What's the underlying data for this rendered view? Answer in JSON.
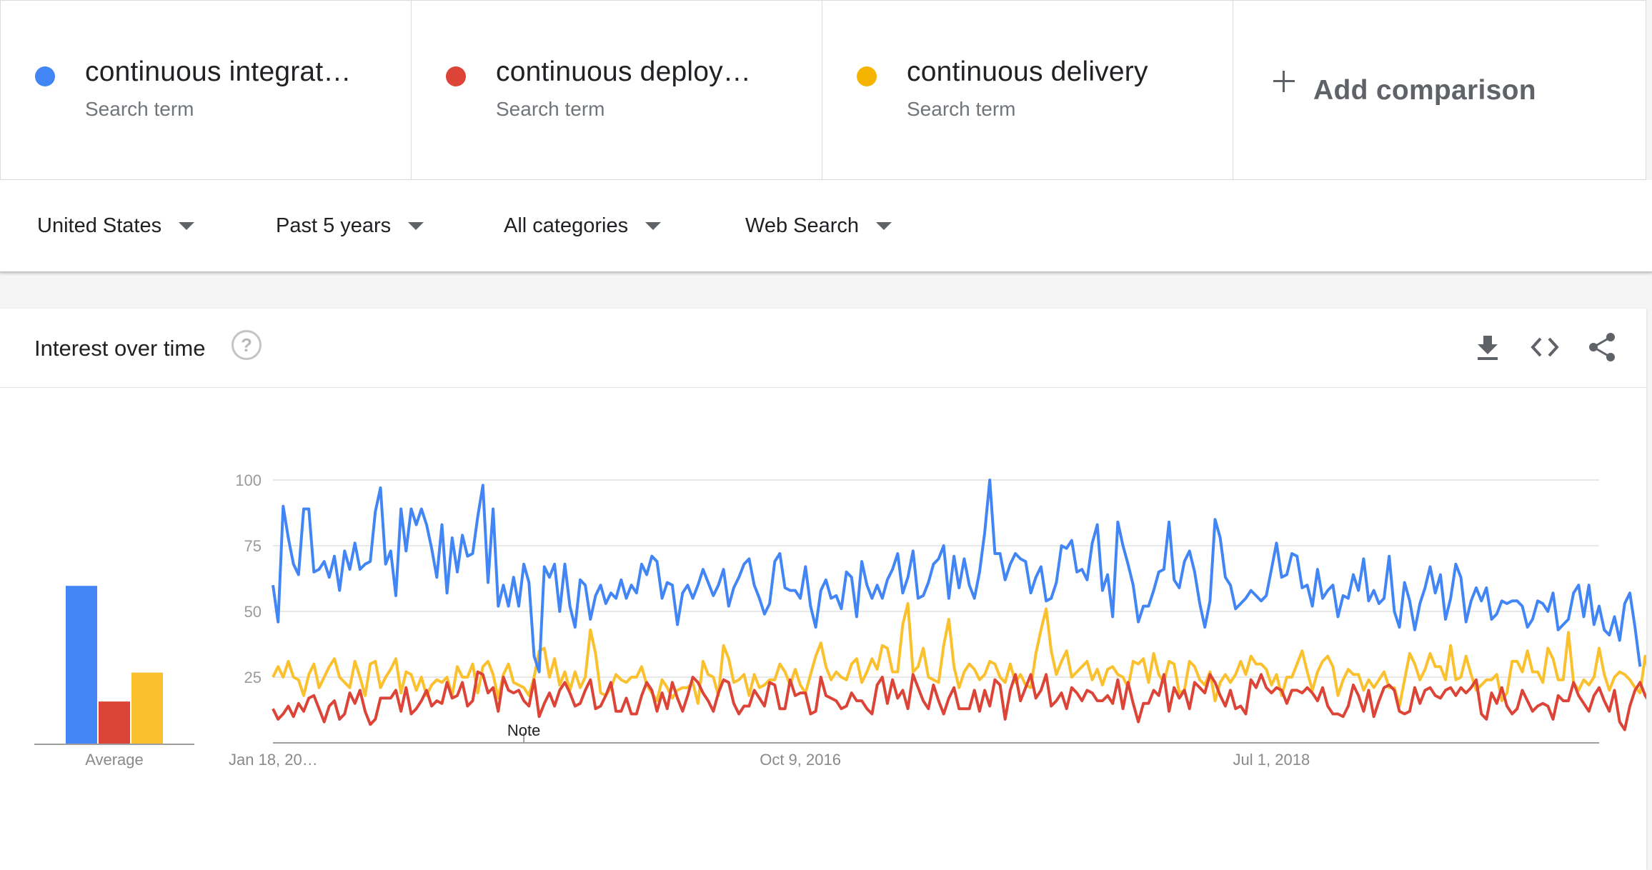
{
  "terms": [
    {
      "label": "continuous integration",
      "sub": "Search term",
      "color": "#4285f4"
    },
    {
      "label": "continuous deployment",
      "sub": "Search term",
      "color": "#db4437"
    },
    {
      "label": "continuous delivery",
      "sub": "Search term",
      "color": "#f4b400"
    }
  ],
  "add_comparison": "Add comparison",
  "filters": {
    "region": "United States",
    "time": "Past 5 years",
    "category": "All categories",
    "search_type": "Web Search"
  },
  "card": {
    "title": "Interest over time",
    "help": "?"
  },
  "chart_data": [
    {
      "type": "bar",
      "xlabel": "Average",
      "categories": [
        "continuous integration",
        "continuous deployment",
        "continuous delivery"
      ],
      "values": [
        60,
        16,
        27
      ],
      "colors": [
        "#4285f4",
        "#db4437",
        "#fbc02d"
      ]
    },
    {
      "type": "line",
      "ylim": [
        0,
        100
      ],
      "yticks": [
        25,
        50,
        75,
        100
      ],
      "x_tick_labels": [
        "Jan 18, 20…",
        "Oct 9, 2016",
        "Jul 1, 2018"
      ],
      "annotation": "Note",
      "n_points": 260,
      "series": [
        {
          "name": "continuous integration",
          "color": "#4285f4",
          "values": [
            60,
            46,
            90,
            78,
            68,
            64,
            89,
            89,
            65,
            66,
            69,
            63,
            71,
            58,
            73,
            66,
            76,
            66,
            68,
            69,
            88,
            97,
            68,
            73,
            56,
            89,
            73,
            89,
            83,
            89,
            83,
            74,
            63,
            83,
            57,
            78,
            65,
            79,
            71,
            72,
            86,
            98,
            61,
            89,
            52,
            60,
            52,
            63,
            52,
            68,
            61,
            33,
            27,
            67,
            63,
            68,
            50,
            68,
            52,
            44,
            62,
            60,
            47,
            56,
            60,
            53,
            57,
            55,
            62,
            55,
            60,
            57,
            68,
            64,
            71,
            69,
            55,
            61,
            60,
            45,
            57,
            60,
            55,
            60,
            66,
            61,
            56,
            60,
            66,
            52,
            59,
            63,
            68,
            70,
            60,
            55,
            49,
            53,
            69,
            72,
            59,
            58,
            58,
            55,
            67,
            52,
            44,
            58,
            62,
            55,
            56,
            51,
            65,
            63,
            48,
            69,
            60,
            55,
            60,
            55,
            62,
            66,
            72,
            57,
            63,
            73,
            55,
            56,
            61,
            68,
            70,
            75,
            55,
            71,
            59,
            70,
            60,
            55,
            65,
            80,
            100,
            72,
            72,
            62,
            68,
            72,
            70,
            69,
            57,
            63,
            67,
            54,
            55,
            61,
            75,
            74,
            77,
            65,
            66,
            62,
            76,
            83,
            58,
            64,
            48,
            84,
            75,
            68,
            60,
            46,
            52,
            52,
            58,
            65,
            66,
            84,
            62,
            59,
            69,
            73,
            65,
            53,
            44,
            54,
            85,
            78,
            63,
            60,
            51,
            53,
            55,
            58,
            56,
            54,
            56,
            66,
            76,
            63,
            64,
            72,
            71,
            59,
            60,
            52,
            66,
            55,
            58,
            60,
            48,
            56,
            55,
            64,
            58,
            70,
            54,
            58,
            53,
            55,
            71,
            50,
            44,
            61,
            54,
            43,
            53,
            59,
            67,
            57,
            64,
            47,
            55,
            68,
            63,
            46,
            54,
            59,
            54,
            59,
            47,
            49,
            54,
            53,
            54,
            54,
            52,
            44,
            47,
            54,
            53,
            50,
            57,
            43,
            45,
            47,
            57,
            60,
            48,
            60,
            45,
            52,
            43,
            41,
            48,
            39,
            53,
            57,
            44,
            29
          ]
        },
        {
          "name": "continuous deployment",
          "color": "#db4437",
          "values": [
            13,
            9,
            11,
            14,
            10,
            15,
            12,
            17,
            18,
            13,
            8,
            14,
            16,
            9,
            11,
            19,
            15,
            20,
            12,
            7,
            9,
            17,
            17,
            17,
            20,
            12,
            21,
            11,
            13,
            16,
            20,
            14,
            16,
            15,
            23,
            17,
            18,
            23,
            14,
            16,
            27,
            26,
            19,
            21,
            12,
            25,
            20,
            19,
            20,
            16,
            14,
            24,
            10,
            15,
            19,
            14,
            20,
            23,
            19,
            14,
            15,
            20,
            24,
            13,
            14,
            18,
            23,
            12,
            12,
            17,
            11,
            11,
            18,
            23,
            20,
            12,
            19,
            13,
            23,
            17,
            12,
            18,
            25,
            23,
            19,
            16,
            12,
            19,
            24,
            23,
            15,
            11,
            14,
            14,
            20,
            17,
            14,
            23,
            22,
            13,
            13,
            24,
            18,
            19,
            19,
            11,
            12,
            25,
            18,
            17,
            16,
            13,
            14,
            19,
            16,
            16,
            13,
            11,
            22,
            25,
            15,
            24,
            17,
            20,
            13,
            26,
            21,
            16,
            13,
            22,
            16,
            11,
            17,
            21,
            13,
            13,
            13,
            20,
            12,
            20,
            14,
            24,
            22,
            9,
            20,
            26,
            16,
            21,
            26,
            17,
            20,
            26,
            14,
            16,
            19,
            13,
            21,
            19,
            16,
            20,
            19,
            16,
            16,
            18,
            15,
            24,
            13,
            23,
            15,
            8,
            15,
            15,
            20,
            18,
            26,
            12,
            21,
            17,
            20,
            13,
            23,
            21,
            19,
            26,
            23,
            18,
            14,
            20,
            13,
            14,
            11,
            24,
            21,
            26,
            21,
            19,
            21,
            20,
            15,
            20,
            20,
            19,
            21,
            19,
            16,
            21,
            14,
            11,
            11,
            10,
            14,
            22,
            18,
            12,
            20,
            10,
            16,
            21,
            22,
            20,
            12,
            11,
            12,
            21,
            15,
            20,
            21,
            18,
            17,
            20,
            21,
            18,
            21,
            19,
            21,
            24,
            11,
            9,
            19,
            15,
            21,
            14,
            11,
            13,
            20,
            16,
            12,
            14,
            15,
            14,
            9,
            18,
            16,
            16,
            23,
            18,
            15,
            12,
            18,
            21,
            16,
            12,
            20,
            8,
            5,
            14,
            20,
            23,
            18,
            15,
            17,
            14,
            22
          ]
        },
        {
          "name": "continuous delivery",
          "color": "#fbc02d",
          "values": [
            25,
            29,
            25,
            31,
            25,
            24,
            18,
            26,
            30,
            21,
            25,
            29,
            32,
            25,
            23,
            21,
            31,
            25,
            18,
            30,
            31,
            21,
            25,
            28,
            32,
            19,
            27,
            26,
            20,
            25,
            18,
            22,
            24,
            23,
            25,
            18,
            29,
            25,
            25,
            30,
            19,
            29,
            31,
            26,
            17,
            26,
            30,
            23,
            22,
            21,
            18,
            25,
            35,
            36,
            25,
            32,
            22,
            27,
            20,
            27,
            21,
            25,
            43,
            34,
            19,
            18,
            21,
            26,
            24,
            23,
            25,
            25,
            29,
            22,
            19,
            16,
            24,
            21,
            17,
            20,
            21,
            21,
            23,
            15,
            31,
            26,
            25,
            18,
            37,
            32,
            23,
            24,
            26,
            18,
            26,
            21,
            22,
            24,
            24,
            30,
            27,
            22,
            28,
            22,
            19,
            26,
            33,
            38,
            29,
            24,
            27,
            25,
            24,
            30,
            32,
            23,
            27,
            32,
            28,
            37,
            36,
            27,
            27,
            45,
            53,
            27,
            29,
            36,
            25,
            24,
            23,
            37,
            47,
            29,
            21,
            27,
            30,
            28,
            24,
            26,
            31,
            30,
            25,
            23,
            30,
            23,
            26,
            22,
            21,
            34,
            43,
            51,
            35,
            26,
            31,
            35,
            25,
            27,
            29,
            31,
            24,
            28,
            22,
            28,
            29,
            26,
            25,
            21,
            31,
            30,
            32,
            23,
            34,
            26,
            23,
            31,
            30,
            19,
            20,
            31,
            29,
            24,
            22,
            27,
            16,
            23,
            26,
            23,
            26,
            31,
            26,
            33,
            30,
            30,
            28,
            22,
            26,
            18,
            25,
            25,
            30,
            35,
            27,
            20,
            27,
            31,
            33,
            29,
            18,
            24,
            28,
            26,
            26,
            20,
            24,
            21,
            24,
            27,
            21,
            21,
            14,
            24,
            34,
            30,
            24,
            28,
            34,
            29,
            29,
            24,
            37,
            24,
            25,
            33,
            26,
            20,
            22,
            24,
            24,
            26,
            16,
            19,
            31,
            31,
            27,
            35,
            27,
            27,
            23,
            36,
            32,
            24,
            24,
            42,
            23,
            20,
            24,
            22,
            25,
            36,
            26,
            20,
            25,
            27,
            26,
            24,
            21,
            19,
            33,
            25,
            35,
            27,
            21,
            23
          ]
        }
      ]
    }
  ]
}
